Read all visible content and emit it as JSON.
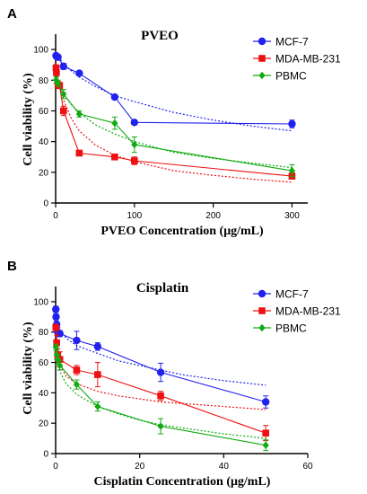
{
  "figure": {
    "series_styles": [
      {
        "name": "MCF-7",
        "color": "#2222ee",
        "marker": "circle"
      },
      {
        "name": "MDA-MB-231",
        "color": "#ee1111",
        "marker": "square"
      },
      {
        "name": "PBMC",
        "color": "#11aa11",
        "marker": "diamond"
      }
    ]
  },
  "chart_data": [
    {
      "type": "line",
      "panel": "A",
      "title": "PVEO",
      "xlabel": "PVEO Concentration (μg/mL)",
      "ylabel": "Cell viability (%)",
      "xlim": [
        0,
        320
      ],
      "ylim": [
        0,
        110
      ],
      "xticks": [
        0,
        100,
        200,
        300
      ],
      "yticks": [
        0,
        20,
        40,
        60,
        80,
        100
      ],
      "legend": "top-right",
      "series": [
        {
          "name": "MCF-7",
          "x": [
            0.5,
            1,
            3,
            10,
            30,
            75,
            100,
            300
          ],
          "y": [
            96,
            95.5,
            95,
            89,
            84.5,
            69,
            52.5,
            51.5
          ],
          "err": [
            1.5,
            1.5,
            1.5,
            2,
            1.5,
            1.5,
            1,
            2.5
          ],
          "fit_x": [
            0.5,
            2,
            5,
            10,
            20,
            30,
            50,
            75,
            100,
            150,
            200,
            250,
            300
          ],
          "fit_y": [
            97,
            96,
            94,
            91,
            86,
            82,
            76,
            70,
            66,
            59,
            54,
            50,
            47
          ]
        },
        {
          "name": "MDA-MB-231",
          "x": [
            0.5,
            1,
            3,
            5,
            10,
            30,
            75,
            100,
            300
          ],
          "y": [
            88,
            85,
            77,
            76.5,
            60,
            32.5,
            30,
            27.5,
            17.5
          ],
          "err": [
            2,
            2,
            2,
            2,
            3,
            1.5,
            1.5,
            2.5,
            2
          ],
          "fit_x": [
            0.5,
            2,
            5,
            10,
            20,
            30,
            50,
            75,
            100,
            150,
            200,
            250,
            300
          ],
          "fit_y": [
            92,
            86,
            77,
            67,
            55,
            47,
            38,
            31,
            27,
            21,
            18,
            15.5,
            13.5
          ]
        },
        {
          "name": "PBMC",
          "x": [
            0.5,
            3,
            10,
            30,
            75,
            100,
            300
          ],
          "y": [
            80,
            78,
            71,
            58,
            52,
            38,
            21
          ],
          "err": [
            2,
            2,
            3,
            2,
            4,
            5,
            4
          ],
          "fit_x": [
            0.5,
            2,
            5,
            10,
            20,
            30,
            50,
            75,
            100,
            150,
            200,
            250,
            300
          ],
          "fit_y": [
            83,
            80,
            76,
            71,
            64,
            59,
            51,
            45,
            40,
            33,
            29,
            26,
            23
          ]
        }
      ]
    },
    {
      "type": "line",
      "panel": "B",
      "title": "Cisplatin",
      "xlabel": "Cisplatin Concentration (μg/mL)",
      "ylabel": "Cell viability (%)",
      "xlim": [
        0,
        60
      ],
      "ylim": [
        0,
        110
      ],
      "xticks": [
        0,
        20,
        40,
        60
      ],
      "yticks": [
        0,
        20,
        40,
        60,
        80,
        100
      ],
      "legend": "top-right",
      "series": [
        {
          "name": "MCF-7",
          "x": [
            0.05,
            0.1,
            0.25,
            0.5,
            1,
            5,
            10,
            25,
            50
          ],
          "y": [
            95,
            90,
            85,
            80,
            79,
            74.5,
            70.5,
            53.5,
            34
          ],
          "err": [
            2,
            2,
            2,
            3,
            2,
            6,
            2.5,
            6,
            4
          ],
          "fit_x": [
            0.05,
            0.25,
            0.5,
            1,
            2.5,
            5,
            10,
            15,
            20,
            25,
            30,
            40,
            50
          ],
          "fit_y": [
            97,
            89,
            85,
            81,
            76,
            71,
            66,
            61,
            58,
            55,
            52,
            48,
            45
          ]
        },
        {
          "name": "MDA-MB-231",
          "x": [
            0.05,
            0.25,
            0.5,
            1,
            5,
            10,
            25,
            50
          ],
          "y": [
            83,
            73,
            65,
            62,
            55,
            52,
            38,
            13.5
          ],
          "err": [
            2,
            5,
            4,
            5,
            3,
            8,
            3,
            5
          ],
          "fit_x": [
            0.05,
            0.25,
            0.5,
            1,
            2.5,
            5,
            10,
            15,
            20,
            25,
            30,
            40,
            50
          ],
          "fit_y": [
            86,
            71,
            64,
            58,
            51,
            46,
            41,
            38,
            36,
            34,
            33,
            31,
            29
          ]
        },
        {
          "name": "PBMC",
          "x": [
            0.05,
            0.25,
            0.5,
            1,
            5,
            10,
            25,
            50
          ],
          "y": [
            70,
            65,
            62,
            58,
            45.5,
            31,
            18,
            5.5
          ],
          "err": [
            2,
            3,
            3,
            3,
            3,
            3,
            5,
            3.5
          ],
          "fit_x": [
            0.05,
            0.25,
            0.5,
            1,
            2.5,
            5,
            10,
            15,
            20,
            25,
            30,
            40,
            50
          ],
          "fit_y": [
            72,
            64,
            59,
            54,
            46,
            39,
            31,
            26,
            22,
            19,
            17,
            13,
            10
          ]
        }
      ]
    }
  ]
}
